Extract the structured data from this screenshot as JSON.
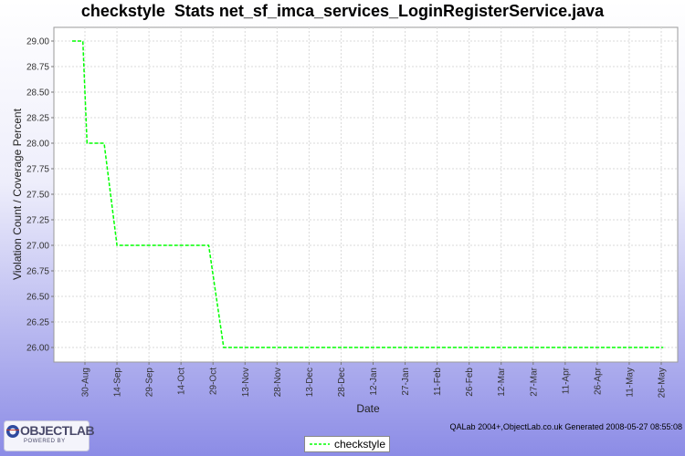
{
  "chart_data": {
    "type": "line",
    "title": "checkstyle  Stats net_sf_imca_services_LoginRegisterService.java",
    "xlabel": "Date",
    "ylabel": "Violation Count / Coverage Percent",
    "x_ticks": [
      "30-Aug",
      "14-Sep",
      "29-Sep",
      "14-Oct",
      "29-Oct",
      "13-Nov",
      "28-Nov",
      "13-Dec",
      "28-Dec",
      "12-Jan",
      "27-Jan",
      "11-Feb",
      "26-Feb",
      "12-Mar",
      "27-Mar",
      "11-Apr",
      "26-Apr",
      "11-May",
      "26-May"
    ],
    "y_ticks": [
      "26.00",
      "26.25",
      "26.50",
      "26.75",
      "27.00",
      "27.25",
      "27.50",
      "27.75",
      "28.00",
      "28.25",
      "28.50",
      "28.75",
      "29.00"
    ],
    "ylim": [
      25.95,
      29.1
    ],
    "grid": true,
    "legend_position": "bottom-center",
    "series": [
      {
        "name": "checkstyle",
        "color": "#00ff00",
        "points": [
          {
            "x": "2007-08-24",
            "y": 29
          },
          {
            "x": "2007-08-29",
            "y": 29
          },
          {
            "x": "2007-08-31",
            "y": 28
          },
          {
            "x": "2007-09-08",
            "y": 28
          },
          {
            "x": "2007-09-14",
            "y": 27
          },
          {
            "x": "2007-10-27",
            "y": 27
          },
          {
            "x": "2007-11-03",
            "y": 26
          },
          {
            "x": "2008-05-27",
            "y": 26
          }
        ]
      }
    ]
  },
  "footer": {
    "generated": "QALab 2004+,ObjectLab.co.uk  Generated 2008-05-27 08:55:08",
    "logo_text": "OBJECTLAB",
    "logo_subtext": "POWERED BY"
  }
}
